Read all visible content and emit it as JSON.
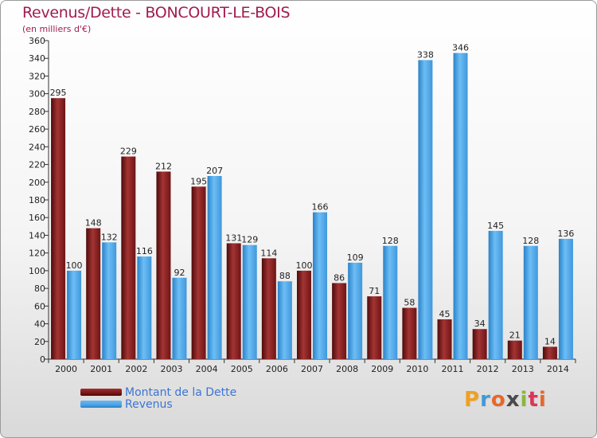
{
  "title": "Revenus/Dette - BONCOURT-LE-BOIS",
  "subtitle": "(en milliers d'€)",
  "logo": {
    "text": "Proxiti",
    "letter_colors": [
      "#f0a020",
      "#3f9ad8",
      "#e8672a",
      "#4a4a4a",
      "#89b83c",
      "#d8365a",
      "#e8672a"
    ]
  },
  "colors": {
    "dette": "#7b1616",
    "revenus": "#4aa3e6",
    "title": "#a01c4e",
    "legend_text": "#3b74d6"
  },
  "legend": [
    {
      "label": "Montant de la Dette",
      "color_key": "dette"
    },
    {
      "label": "Revenus",
      "color_key": "revenus"
    }
  ],
  "chart_data": {
    "type": "bar",
    "title": "Revenus/Dette - BONCOURT-LE-BOIS",
    "subtitle": "(en milliers d'€)",
    "categories": [
      "2000",
      "2001",
      "2002",
      "2003",
      "2004",
      "2005",
      "2006",
      "2007",
      "2008",
      "2009",
      "2010",
      "2011",
      "2012",
      "2013",
      "2014"
    ],
    "series": [
      {
        "name": "Montant de la Dette",
        "values": [
          295,
          148,
          229,
          212,
          195,
          131,
          114,
          100,
          86,
          71,
          58,
          45,
          34,
          21,
          14
        ]
      },
      {
        "name": "Revenus",
        "values": [
          100,
          132,
          116,
          92,
          207,
          129,
          88,
          166,
          109,
          128,
          338,
          346,
          145,
          128,
          136
        ]
      }
    ],
    "ylim": [
      0,
      360
    ],
    "yticks": [
      0,
      20,
      40,
      60,
      80,
      100,
      120,
      140,
      160,
      180,
      200,
      220,
      240,
      260,
      280,
      300,
      320,
      340,
      360
    ],
    "grid": false,
    "legend_position": "bottom-left"
  }
}
